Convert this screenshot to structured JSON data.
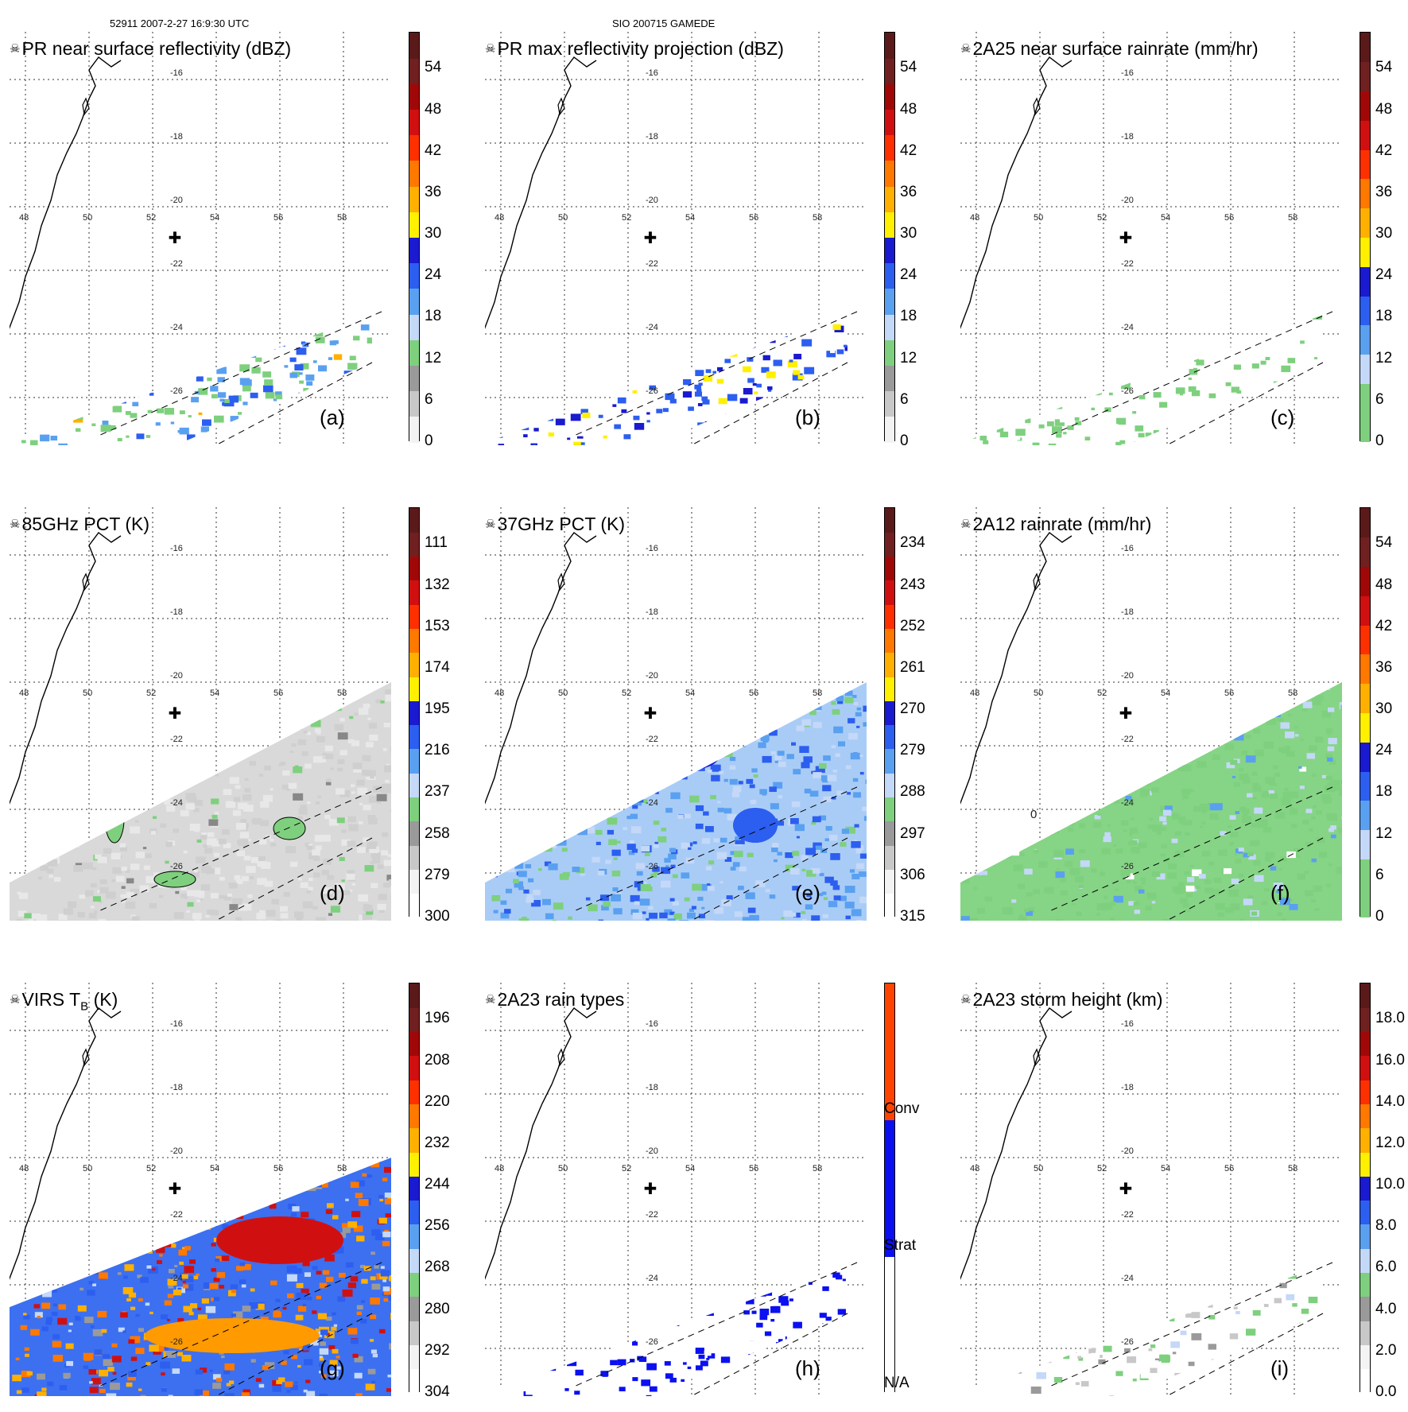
{
  "header": {
    "left": "52911 2007-2-27 16:9:30 UTC",
    "center": "SIO 200715 GAMEDE"
  },
  "colors": {
    "ramp11": [
      "#f3f3f3",
      "#c8c8c8",
      "#9a9a9a",
      "#7ed07e",
      "#c4d8f8",
      "#5aa0f0",
      "#2c5ef0",
      "#1a1ad0",
      "#fff000",
      "#ffb000",
      "#ff7800",
      "#ff3000",
      "#d01010",
      "#a00808",
      "#702020",
      "#5a1a1a"
    ],
    "raintypes": [
      "#ffffff",
      "#0b10f0",
      "#ff4400"
    ]
  },
  "map": {
    "lon_ticks": [
      "48",
      "50",
      "52",
      "54",
      "56",
      "58"
    ],
    "lat_ticks": [
      "-16",
      "-18",
      "-20",
      "-22",
      "-24",
      "-26"
    ],
    "center_marker": "✚"
  },
  "panels": [
    {
      "id": "a",
      "title": "PR near surface reflectivity (dBZ)",
      "label": "(a)",
      "ticks": [
        "0",
        "6",
        "12",
        "18",
        "24",
        "30",
        "36",
        "42",
        "48",
        "54"
      ],
      "scheme": "dbz"
    },
    {
      "id": "b",
      "title": "PR max reflectivity projection (dBZ)",
      "label": "(b)",
      "ticks": [
        "0",
        "6",
        "12",
        "18",
        "24",
        "30",
        "36",
        "42",
        "48",
        "54"
      ],
      "scheme": "dbz"
    },
    {
      "id": "c",
      "title": "2A25 near surface rainrate (mm/hr)",
      "label": "(c)",
      "ticks": [
        "0",
        "6",
        "12",
        "18",
        "24",
        "30",
        "36",
        "42",
        "48",
        "54"
      ],
      "scheme": "rain"
    },
    {
      "id": "d",
      "title": "85GHz PCT (K)",
      "label": "(d)",
      "ticks": [
        "300",
        "279",
        "258",
        "237",
        "216",
        "195",
        "174",
        "153",
        "132",
        "111"
      ],
      "scheme": "dbz"
    },
    {
      "id": "e",
      "title": "37GHz PCT (K)",
      "label": "(e)",
      "ticks": [
        "315",
        "306",
        "297",
        "288",
        "279",
        "270",
        "261",
        "252",
        "243",
        "234"
      ],
      "scheme": "dbz"
    },
    {
      "id": "f",
      "title": "2A12 rainrate (mm/hr)",
      "label": "(f)",
      "ticks": [
        "0",
        "6",
        "12",
        "18",
        "24",
        "30",
        "36",
        "42",
        "48",
        "54"
      ],
      "scheme": "rain"
    },
    {
      "id": "g",
      "title": "VIRS T",
      "title_sub": "B",
      "title_end": " (K)",
      "label": "(g)",
      "ticks": [
        "304",
        "292",
        "280",
        "268",
        "256",
        "244",
        "232",
        "220",
        "208",
        "196"
      ],
      "scheme": "dbz"
    },
    {
      "id": "h",
      "title": "2A23 rain types",
      "label": "(h)",
      "ticks": [
        "N/A",
        "Strat",
        "Conv"
      ],
      "scheme": "raintypes"
    },
    {
      "id": "i",
      "title": "2A23 storm height (km)",
      "label": "(i)",
      "ticks": [
        "0.0",
        "2.0",
        "4.0",
        "6.0",
        "8.0",
        "10.0",
        "12.0",
        "14.0",
        "16.0",
        "18.0"
      ],
      "scheme": "dbz"
    }
  ],
  "f_contour_label": "0"
}
